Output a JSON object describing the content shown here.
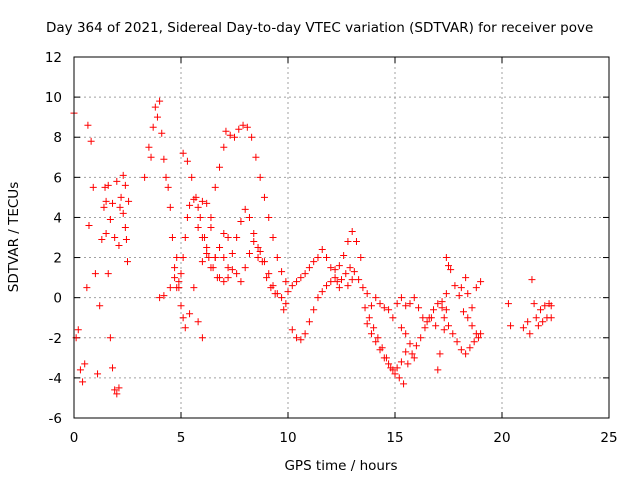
{
  "chart_data": {
    "type": "scatter",
    "title": "Day 364 of 2021, Sidereal Day-to-day VTEC variation (SDTVAR) for receiver pove",
    "xlabel": "GPS time / hours",
    "ylabel": "SDTVAR / TECUs",
    "xlim": [
      0,
      25
    ],
    "ylim": [
      -6,
      12
    ],
    "xticks": [
      "0",
      "5",
      "10",
      "15",
      "20",
      "25"
    ],
    "yticks": [
      "-6",
      "-4",
      "-2",
      "0",
      "2",
      "4",
      "6",
      "8",
      "10",
      "12"
    ],
    "grid": true,
    "marker": "+",
    "series": [
      {
        "name": "SDTVAR",
        "color": "#ff0000",
        "points": [
          [
            0.0,
            9.2
          ],
          [
            0.1,
            -2.0
          ],
          [
            0.2,
            -1.6
          ],
          [
            0.3,
            -3.6
          ],
          [
            0.4,
            -4.2
          ],
          [
            0.5,
            -3.3
          ],
          [
            0.6,
            0.5
          ],
          [
            0.7,
            3.6
          ],
          [
            0.65,
            8.6
          ],
          [
            0.8,
            7.8
          ],
          [
            0.9,
            5.5
          ],
          [
            1.0,
            1.2
          ],
          [
            1.1,
            -3.8
          ],
          [
            1.2,
            -0.4
          ],
          [
            1.3,
            2.9
          ],
          [
            1.4,
            4.5
          ],
          [
            1.45,
            5.5
          ],
          [
            1.5,
            3.2
          ],
          [
            1.6,
            1.2
          ],
          [
            1.7,
            -2.0
          ],
          [
            1.8,
            -3.5
          ],
          [
            1.9,
            -4.6
          ],
          [
            2.0,
            -4.8
          ],
          [
            2.1,
            -4.5
          ],
          [
            2.15,
            4.5
          ],
          [
            2.2,
            5.0
          ],
          [
            2.3,
            6.1
          ],
          [
            2.4,
            3.5
          ],
          [
            2.5,
            1.8
          ],
          [
            2.55,
            4.8
          ],
          [
            1.5,
            4.8
          ],
          [
            1.6,
            5.6
          ],
          [
            1.7,
            3.9
          ],
          [
            1.8,
            4.7
          ],
          [
            1.9,
            3.0
          ],
          [
            2.0,
            5.8
          ],
          [
            2.1,
            2.6
          ],
          [
            2.3,
            4.2
          ],
          [
            2.4,
            5.6
          ],
          [
            2.45,
            2.9
          ],
          [
            3.3,
            6.0
          ],
          [
            3.5,
            7.5
          ],
          [
            3.6,
            7.0
          ],
          [
            3.7,
            8.5
          ],
          [
            3.8,
            9.5
          ],
          [
            3.9,
            9.0
          ],
          [
            4.0,
            9.8
          ],
          [
            4.1,
            8.2
          ],
          [
            4.2,
            6.9
          ],
          [
            4.3,
            6.0
          ],
          [
            4.4,
            5.5
          ],
          [
            4.5,
            4.5
          ],
          [
            4.6,
            3.0
          ],
          [
            4.7,
            1.0
          ],
          [
            4.8,
            0.5
          ],
          [
            4.9,
            0.8
          ],
          [
            5.0,
            1.2
          ],
          [
            5.1,
            2.0
          ],
          [
            5.2,
            3.0
          ],
          [
            5.3,
            4.0
          ],
          [
            5.4,
            4.6
          ],
          [
            5.6,
            4.9
          ],
          [
            5.8,
            4.5
          ],
          [
            6.0,
            4.8
          ],
          [
            6.2,
            4.7
          ],
          [
            6.4,
            3.5
          ],
          [
            6.6,
            2.0
          ],
          [
            6.8,
            1.0
          ],
          [
            7.0,
            0.8
          ],
          [
            7.2,
            1.5
          ],
          [
            4.0,
            0.0
          ],
          [
            4.2,
            0.1
          ],
          [
            4.5,
            0.5
          ],
          [
            4.7,
            1.5
          ],
          [
            4.8,
            2.0
          ],
          [
            4.9,
            0.5
          ],
          [
            5.0,
            -0.4
          ],
          [
            5.1,
            -1.0
          ],
          [
            5.2,
            -1.5
          ],
          [
            5.4,
            -0.8
          ],
          [
            5.6,
            0.5
          ],
          [
            5.8,
            -1.2
          ],
          [
            6.0,
            -2.0
          ],
          [
            5.1,
            7.2
          ],
          [
            5.3,
            6.8
          ],
          [
            5.5,
            6.0
          ],
          [
            5.7,
            5.0
          ],
          [
            5.9,
            4.0
          ],
          [
            6.1,
            3.0
          ],
          [
            6.3,
            2.0
          ],
          [
            6.5,
            1.5
          ],
          [
            6.7,
            1.0
          ],
          [
            6.0,
            1.8
          ],
          [
            6.2,
            2.2
          ],
          [
            6.4,
            1.5
          ],
          [
            6.6,
            2.0
          ],
          [
            6.8,
            2.5
          ],
          [
            7.0,
            2.0
          ],
          [
            7.2,
            1.0
          ],
          [
            7.4,
            1.4
          ],
          [
            7.6,
            3.0
          ],
          [
            7.8,
            3.8
          ],
          [
            8.0,
            4.4
          ],
          [
            8.2,
            4.0
          ],
          [
            8.4,
            3.2
          ],
          [
            8.6,
            2.5
          ],
          [
            8.8,
            1.8
          ],
          [
            9.0,
            1.0
          ],
          [
            9.2,
            0.5
          ],
          [
            9.4,
            0.2
          ],
          [
            6.8,
            2.5
          ],
          [
            7.0,
            3.2
          ],
          [
            7.2,
            3.0
          ],
          [
            7.4,
            2.2
          ],
          [
            7.6,
            1.2
          ],
          [
            7.8,
            0.8
          ],
          [
            8.0,
            1.5
          ],
          [
            8.2,
            2.2
          ],
          [
            8.4,
            2.8
          ],
          [
            8.6,
            2.0
          ],
          [
            5.8,
            3.5
          ],
          [
            6.0,
            3.0
          ],
          [
            6.2,
            2.5
          ],
          [
            6.4,
            4.0
          ],
          [
            6.6,
            5.5
          ],
          [
            6.8,
            6.5
          ],
          [
            7.0,
            7.5
          ],
          [
            7.1,
            8.3
          ],
          [
            7.3,
            8.1
          ],
          [
            7.5,
            8.0
          ],
          [
            7.7,
            8.4
          ],
          [
            7.9,
            8.6
          ],
          [
            8.1,
            8.5
          ],
          [
            8.3,
            8.0
          ],
          [
            8.5,
            7.0
          ],
          [
            8.7,
            6.0
          ],
          [
            8.9,
            5.0
          ],
          [
            9.1,
            4.0
          ],
          [
            9.3,
            3.0
          ],
          [
            9.5,
            2.0
          ],
          [
            9.7,
            1.3
          ],
          [
            9.9,
            0.8
          ],
          [
            8.7,
            2.3
          ],
          [
            8.9,
            1.8
          ],
          [
            9.1,
            1.2
          ],
          [
            9.3,
            0.6
          ],
          [
            9.5,
            0.2
          ],
          [
            9.7,
            0.0
          ],
          [
            9.9,
            -0.3
          ],
          [
            9.8,
            -0.6
          ],
          [
            10.0,
            0.3
          ],
          [
            10.2,
            0.6
          ],
          [
            10.4,
            0.8
          ],
          [
            10.6,
            1.0
          ],
          [
            10.8,
            1.2
          ],
          [
            11.0,
            1.5
          ],
          [
            11.2,
            1.8
          ],
          [
            11.4,
            2.0
          ],
          [
            11.6,
            2.4
          ],
          [
            11.8,
            2.0
          ],
          [
            12.0,
            1.5
          ],
          [
            12.2,
            1.0
          ],
          [
            12.4,
            0.5
          ],
          [
            10.2,
            -1.6
          ],
          [
            10.4,
            -2.0
          ],
          [
            10.6,
            -2.1
          ],
          [
            10.8,
            -1.8
          ],
          [
            11.0,
            -1.2
          ],
          [
            11.2,
            -0.6
          ],
          [
            11.4,
            0.0
          ],
          [
            11.6,
            0.3
          ],
          [
            11.8,
            0.6
          ],
          [
            12.0,
            0.8
          ],
          [
            12.2,
            1.4
          ],
          [
            12.4,
            1.6
          ],
          [
            12.6,
            2.1
          ],
          [
            12.8,
            2.8
          ],
          [
            13.0,
            3.3
          ],
          [
            13.2,
            2.8
          ],
          [
            13.4,
            2.0
          ],
          [
            12.3,
            0.8
          ],
          [
            12.5,
            0.9
          ],
          [
            12.7,
            1.2
          ],
          [
            12.9,
            1.5
          ],
          [
            13.1,
            1.3
          ],
          [
            13.3,
            0.9
          ],
          [
            13.5,
            0.5
          ],
          [
            13.7,
            0.2
          ],
          [
            12.8,
            0.6
          ],
          [
            13.0,
            0.9
          ],
          [
            13.6,
            -0.5
          ],
          [
            13.8,
            -1.0
          ],
          [
            14.0,
            -1.5
          ],
          [
            14.2,
            -2.0
          ],
          [
            14.4,
            -2.5
          ],
          [
            14.6,
            -3.0
          ],
          [
            14.8,
            -3.5
          ],
          [
            15.0,
            -3.8
          ],
          [
            15.2,
            -4.0
          ],
          [
            15.4,
            -4.3
          ],
          [
            13.7,
            -1.3
          ],
          [
            13.9,
            -1.8
          ],
          [
            14.1,
            -2.2
          ],
          [
            14.3,
            -2.6
          ],
          [
            14.5,
            -3.0
          ],
          [
            14.7,
            -3.3
          ],
          [
            14.9,
            -3.6
          ],
          [
            15.1,
            -3.5
          ],
          [
            15.3,
            -3.2
          ],
          [
            15.5,
            -2.7
          ],
          [
            15.6,
            -3.3
          ],
          [
            15.8,
            -2.8
          ],
          [
            16.0,
            -2.4
          ],
          [
            16.2,
            -2.0
          ],
          [
            16.4,
            -1.5
          ],
          [
            16.6,
            -1.0
          ],
          [
            16.8,
            -0.6
          ],
          [
            17.0,
            -0.3
          ],
          [
            17.2,
            -0.5
          ],
          [
            17.4,
            -0.6
          ],
          [
            13.9,
            -0.4
          ],
          [
            14.1,
            0.0
          ],
          [
            14.3,
            -0.3
          ],
          [
            14.5,
            -0.5
          ],
          [
            14.7,
            -0.6
          ],
          [
            14.9,
            -1.0
          ],
          [
            15.1,
            -0.3
          ],
          [
            15.3,
            0.0
          ],
          [
            15.5,
            -0.4
          ],
          [
            15.7,
            -0.3
          ],
          [
            15.9,
            0.0
          ],
          [
            16.1,
            -0.5
          ],
          [
            16.3,
            -1.0
          ],
          [
            16.5,
            -1.2
          ],
          [
            16.7,
            -1.0
          ],
          [
            16.9,
            -1.4
          ],
          [
            15.3,
            -1.5
          ],
          [
            15.5,
            -1.8
          ],
          [
            15.7,
            -2.3
          ],
          [
            15.9,
            -3.0
          ],
          [
            17.0,
            -3.6
          ],
          [
            17.1,
            -2.8
          ],
          [
            17.3,
            -1.6
          ],
          [
            17.2,
            -0.2
          ],
          [
            17.4,
            0.2
          ],
          [
            17.5,
            1.6
          ],
          [
            17.4,
            2.0
          ],
          [
            17.6,
            1.4
          ],
          [
            17.8,
            0.6
          ],
          [
            18.0,
            0.1
          ],
          [
            17.3,
            -1.0
          ],
          [
            17.5,
            -1.4
          ],
          [
            17.7,
            -1.8
          ],
          [
            17.9,
            -2.2
          ],
          [
            18.1,
            -2.6
          ],
          [
            18.3,
            -2.8
          ],
          [
            18.5,
            -2.5
          ],
          [
            18.7,
            -2.2
          ],
          [
            18.9,
            -2.0
          ],
          [
            19.0,
            -1.8
          ],
          [
            18.1,
            0.5
          ],
          [
            18.3,
            1.0
          ],
          [
            18.4,
            0.2
          ],
          [
            18.6,
            -0.5
          ],
          [
            18.8,
            0.5
          ],
          [
            19.0,
            0.8
          ],
          [
            18.2,
            -0.7
          ],
          [
            18.4,
            -1.0
          ],
          [
            18.6,
            -1.4
          ],
          [
            18.8,
            -1.8
          ],
          [
            20.3,
            -0.3
          ],
          [
            20.4,
            -1.4
          ],
          [
            21.0,
            -1.5
          ],
          [
            21.2,
            -1.2
          ],
          [
            21.3,
            -1.8
          ],
          [
            21.4,
            0.9
          ],
          [
            21.5,
            -0.3
          ],
          [
            21.6,
            -1.0
          ],
          [
            21.7,
            -1.4
          ],
          [
            21.8,
            -0.6
          ],
          [
            21.9,
            -1.2
          ],
          [
            22.0,
            -0.4
          ],
          [
            22.1,
            -1.0
          ],
          [
            22.2,
            -0.3
          ],
          [
            22.3,
            -1.0
          ],
          [
            22.3,
            -0.4
          ]
        ]
      }
    ]
  }
}
